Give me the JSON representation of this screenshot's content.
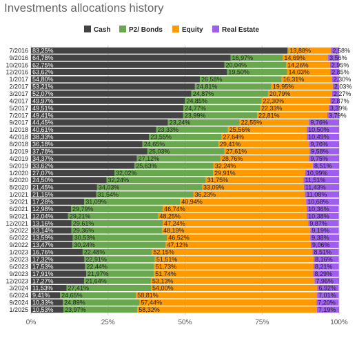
{
  "chart_data": {
    "type": "bar",
    "orientation": "horizontal",
    "stacked": true,
    "title": "Investments allocations history",
    "xlim": [
      0,
      100
    ],
    "xticks": [
      "0%",
      "25%",
      "50%",
      "75%",
      "100%"
    ],
    "grid": true,
    "legend_position": "top-right",
    "categories": [
      "7/2016",
      "9/2016",
      "10/2016",
      "12/2016",
      "1/2017",
      "2/2017",
      "3/2017",
      "4/2017",
      "5/2017",
      "7/2017",
      "9/2017",
      "1/2018",
      "4/2018",
      "8/2018",
      "1/2019",
      "4/2019",
      "9/2019",
      "1/2020",
      "6/2020",
      "8/2020",
      "1/2021",
      "3/2021",
      "6/2021",
      "9/2021",
      "12/2021",
      "3/2022",
      "6/2022",
      "9/2022",
      "1/2023",
      "3/2023",
      "6/2023",
      "9/2023",
      "12/2023",
      "3/2024",
      "6/2024",
      "9/2024",
      "1/2025"
    ],
    "series": [
      {
        "name": "Cash",
        "color": "#434343",
        "values": [
          83.25,
          64.78,
          62.75,
          63.62,
          54.8,
          53.21,
          52.07,
          49.97,
          49.51,
          49.41,
          44.45,
          40.61,
          38.33,
          36.18,
          37.78,
          34.37,
          33.62,
          27.07,
          24.5,
          21.45,
          21.15,
          17.28,
          12.98,
          12.04,
          13.16,
          13.14,
          13.59,
          13.47,
          16.76,
          17.32,
          17.53,
          17.91,
          17.27,
          11.53,
          9.41,
          10.33,
          10.53
        ],
        "labels": [
          "83,25%",
          "64,78%",
          "62,75%",
          "63,62%",
          "54,80%",
          "53,21%",
          "52,07%",
          "49,97%",
          "49,51%",
          "49,41%",
          "44,45%",
          "40,61%",
          "38,33%",
          "36,18%",
          "37,78%",
          "34,37%",
          "33,62%",
          "27,07%",
          "24,50%",
          "21,45%",
          "21,15%",
          "17,28%",
          "12,98%",
          "12,04%",
          "13,16%",
          "13,14%",
          "13,59%",
          "13,47%",
          "16,76%",
          "17,32%",
          "17,53%",
          "17,91%",
          "17,27%",
          "11,53%",
          "9,41%",
          "10,33%",
          "10,53%"
        ]
      },
      {
        "name": "P2/ Bonds",
        "color": "#6aa84f",
        "values": [
          0.29,
          16.97,
          20.04,
          19.5,
          26.58,
          24.81,
          24.87,
          24.85,
          24.77,
          23.99,
          23.24,
          23.33,
          23.55,
          24.65,
          25.03,
          27.12,
          25.63,
          32.02,
          32.24,
          34.03,
          31.54,
          31.09,
          29.79,
          29.21,
          29.61,
          29.36,
          30.53,
          30.24,
          22.48,
          22.91,
          22.44,
          21.97,
          21.64,
          27.41,
          24.65,
          24.89,
          23.97
        ],
        "labels": [
          "",
          "16,97%",
          "20,04%",
          "19,50%",
          "26,58%",
          "24,81%",
          "24,87%",
          "24,85%",
          "24,77%",
          "23,99%",
          "23,24%",
          "23,33%",
          "23,55%",
          "24,65%",
          "25,03%",
          "27,12%",
          "25,63%",
          "32,02%",
          "32,24%",
          "34,03%",
          "31,54%",
          "31,09%",
          "29,79%",
          "29,21%",
          "29,61%",
          "29,36%",
          "30,53%",
          "30,24%",
          "22,48%",
          "22,91%",
          "22,44%",
          "21,97%",
          "21,64%",
          "27,41%",
          "24,65%",
          "24,89%",
          "23,97%"
        ]
      },
      {
        "name": "Equity",
        "color": "#ff9900",
        "values": [
          13.88,
          14.69,
          14.26,
          14.03,
          16.31,
          19.95,
          20.79,
          22.3,
          22.33,
          22.81,
          22.55,
          25.56,
          27.64,
          29.41,
          27.61,
          28.76,
          32.24,
          29.91,
          31.75,
          33.09,
          36.23,
          40.94,
          46.74,
          48.25,
          47.24,
          48.19,
          46.52,
          47.12,
          52.15,
          51.51,
          51.73,
          51.74,
          53.13,
          54.0,
          58.81,
          57.44,
          58.32
        ],
        "labels": [
          "13,88%",
          "14,69%",
          "14,26%",
          "14,03%",
          "16,31%",
          "19,95%",
          "20,79%",
          "22,30%",
          "22,33%",
          "22,81%",
          "22,55%",
          "25,56%",
          "27,64%",
          "29,41%",
          "27,61%",
          "28,76%",
          "32,24%",
          "29,91%",
          "31,75%",
          "33,09%",
          "36,23%",
          "40,94%",
          "46,74%",
          "48,25%",
          "47,24%",
          "48,19%",
          "46,52%",
          "47,12%",
          "52,15%",
          "51,51%",
          "51,73%",
          "51,74%",
          "53,13%",
          "54,00%",
          "58,81%",
          "57,44%",
          "58,32%"
        ]
      },
      {
        "name": "Real Estate",
        "color": "#9f5ef0",
        "values": [
          2.58,
          3.56,
          2.95,
          2.85,
          2.3,
          2.03,
          2.27,
          2.87,
          3.39,
          3.79,
          9.76,
          10.5,
          10.49,
          9.76,
          9.58,
          9.75,
          8.51,
          10.99,
          11.51,
          11.43,
          11.08,
          10.68,
          10.36,
          10.38,
          9.87,
          9.19,
          9.38,
          9.06,
          8.51,
          8.16,
          8.21,
          8.29,
          7.96,
          6.92,
          7.01,
          7.2,
          7.19
        ],
        "labels": [
          "2,58%",
          "3,56%",
          "2,95%",
          "2,85%",
          "2,30%",
          "2,03%",
          "2,27%",
          "2,87%",
          "3,39%",
          "3,79%",
          "9,76%",
          "10,50%",
          "10,49%",
          "9,76%",
          "9,58%",
          "9,75%",
          "8,51%",
          "10,99%",
          "11,51%",
          "11,43%",
          "11,08%",
          "10,68%",
          "10,36%",
          "10,38%",
          "9,87%",
          "9,19%",
          "9,38%",
          "9,06%",
          "8,51%",
          "8,16%",
          "8,21%",
          "8,29%",
          "7,96%",
          "6,92%",
          "7,01%",
          "7,20%",
          "7,19%"
        ]
      }
    ]
  }
}
